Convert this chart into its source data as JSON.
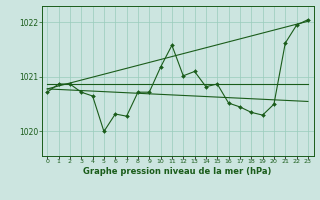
{
  "bg_color": "#cce5e0",
  "grid_color": "#99ccbb",
  "line_color": "#1a5c1a",
  "marker_color": "#1a5c1a",
  "title": "Graphe pression niveau de la mer (hPa)",
  "ylim": [
    1019.55,
    1022.3
  ],
  "xlim": [
    -0.5,
    23.5
  ],
  "yticks": [
    1020,
    1021,
    1022
  ],
  "xtick_labels": [
    "0",
    "1",
    "2",
    "3",
    "4",
    "5",
    "6",
    "7",
    "8",
    "9",
    "10",
    "11",
    "12",
    "13",
    "14",
    "15",
    "16",
    "17",
    "18",
    "19",
    "20",
    "21",
    "22",
    "23"
  ],
  "series1_x": [
    0,
    1,
    2,
    3,
    4,
    5,
    6,
    7,
    8,
    9,
    10,
    11,
    12,
    13,
    14,
    15,
    16,
    17,
    18,
    19,
    20,
    21,
    22,
    23
  ],
  "series1_y": [
    1020.72,
    1020.87,
    1020.87,
    1020.72,
    1020.65,
    1020.0,
    1020.32,
    1020.28,
    1020.72,
    1020.72,
    1021.18,
    1021.58,
    1021.02,
    1021.1,
    1020.82,
    1020.87,
    1020.52,
    1020.45,
    1020.35,
    1020.3,
    1020.5,
    1021.62,
    1021.95,
    1022.05
  ],
  "trend1_x": [
    0,
    23
  ],
  "trend1_y": [
    1020.78,
    1022.02
  ],
  "trend2_x": [
    0,
    23
  ],
  "trend2_y": [
    1020.87,
    1020.87
  ],
  "trend3_x": [
    0,
    23
  ],
  "trend3_y": [
    1020.78,
    1020.55
  ]
}
